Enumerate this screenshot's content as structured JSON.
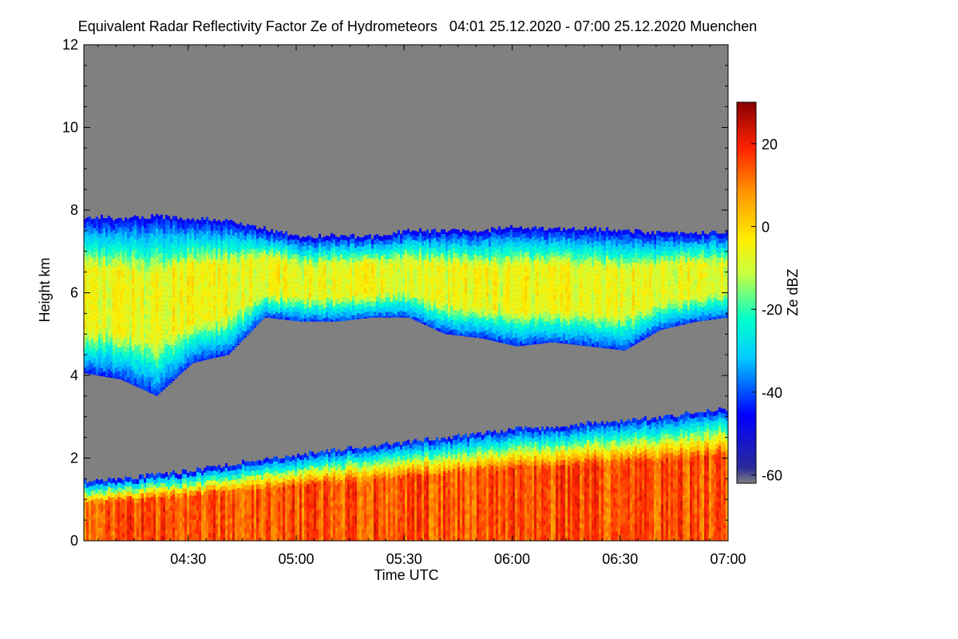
{
  "chart_data": {
    "type": "heatmap",
    "title": "Equivalent Radar Reflectivity Factor Ze of Hydrometeors   04:01 25.12.2020 - 07:00 25.12.2020 Muenchen",
    "xlabel": "Time UTC",
    "ylabel": "Height km",
    "colorbar_label": "Ze dBZ",
    "x_range_minutes": [
      0,
      179
    ],
    "x_ticks": [
      {
        "label": "04:30",
        "minute": 29
      },
      {
        "label": "05:00",
        "minute": 59
      },
      {
        "label": "05:30",
        "minute": 89
      },
      {
        "label": "06:00",
        "minute": 119
      },
      {
        "label": "06:30",
        "minute": 149
      },
      {
        "label": "07:00",
        "minute": 179
      }
    ],
    "ylim": [
      0,
      12
    ],
    "y_ticks": [
      0,
      2,
      4,
      6,
      8,
      10,
      12
    ],
    "color_range": [
      -62,
      30
    ],
    "color_ticks": [
      20,
      0,
      -20,
      -40,
      -60
    ],
    "background_color": "#808080",
    "colormap": [
      "#00008b",
      "#0000ff",
      "#00ffff",
      "#c8ff00",
      "#ffff00",
      "#ff8c00",
      "#ff0000",
      "#8b0000"
    ],
    "layers": [
      {
        "name": "upper",
        "minute": [
          0,
          10,
          20,
          30,
          40,
          50,
          60,
          70,
          80,
          90,
          100,
          110,
          120,
          130,
          140,
          150,
          160,
          170,
          179
        ],
        "top_km": [
          7.85,
          7.8,
          7.85,
          7.8,
          7.75,
          7.55,
          7.35,
          7.4,
          7.35,
          7.5,
          7.5,
          7.5,
          7.6,
          7.55,
          7.55,
          7.5,
          7.45,
          7.45,
          7.45
        ],
        "base_km": [
          4.05,
          3.9,
          3.5,
          4.3,
          4.5,
          5.4,
          5.3,
          5.3,
          5.4,
          5.4,
          5.0,
          4.9,
          4.7,
          4.8,
          4.7,
          4.6,
          5.1,
          5.3,
          5.4
        ],
        "peak_dbz": -8
      },
      {
        "name": "lower",
        "minute": [
          0,
          10,
          20,
          30,
          40,
          50,
          60,
          70,
          80,
          90,
          100,
          110,
          120,
          130,
          140,
          150,
          160,
          170,
          179
        ],
        "top_km": [
          1.45,
          1.5,
          1.6,
          1.7,
          1.85,
          2.0,
          2.1,
          2.2,
          2.3,
          2.4,
          2.5,
          2.6,
          2.7,
          2.75,
          2.85,
          2.9,
          3.0,
          3.1,
          3.2
        ],
        "base_km": [
          0,
          0,
          0,
          0,
          0,
          0,
          0,
          0,
          0,
          0,
          0,
          0,
          0,
          0,
          0,
          0,
          0,
          0,
          0
        ],
        "peak_dbz": 12
      }
    ]
  }
}
